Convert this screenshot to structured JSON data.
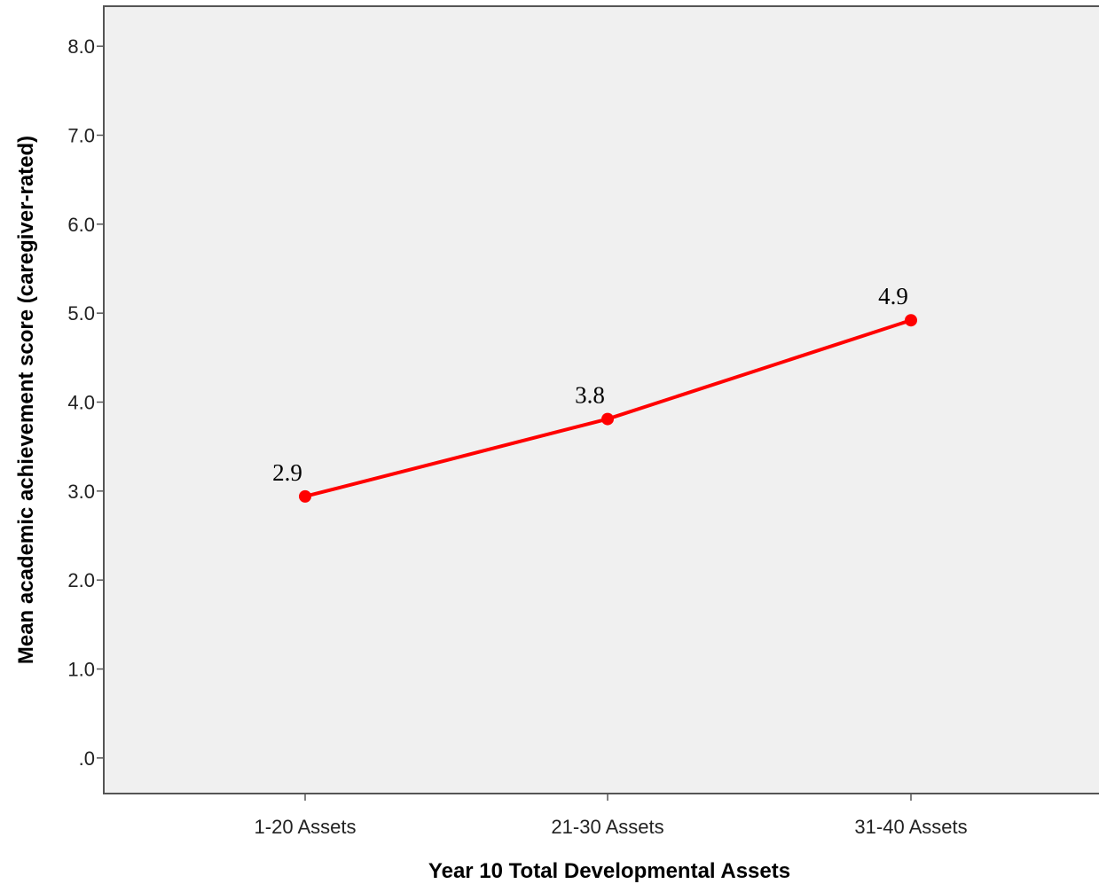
{
  "chart_data": {
    "type": "line",
    "categories": [
      "1-20 Assets",
      "21-30 Assets",
      "31-40 Assets"
    ],
    "series": [
      {
        "values": [
          2.94,
          3.81,
          4.92
        ],
        "labels": [
          "2.9",
          "3.8",
          "4.9"
        ]
      }
    ],
    "xlabel": "Year 10 Total Developmental Assets",
    "ylabel": "Mean academic achievement score (caregiver-rated)",
    "ylim": [
      -0.4,
      8.45
    ],
    "yticks": [
      0,
      1,
      2,
      3,
      4,
      5,
      6,
      7,
      8
    ],
    "ytick_labels": [
      ".0",
      "1.0",
      "2.0",
      "3.0",
      "4.0",
      "5.0",
      "6.0",
      "7.0",
      "8.0"
    ],
    "grid": false,
    "legend": "none",
    "colors": {
      "line": "#ff0000",
      "plot_background": "#f0f0f0",
      "frame": "#555555"
    }
  }
}
